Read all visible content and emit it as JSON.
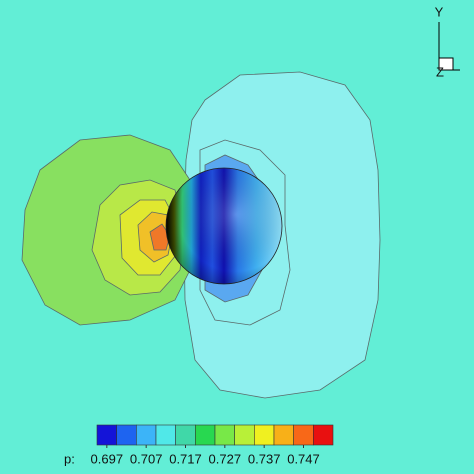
{
  "chart_data": {
    "type": "contour",
    "colorbar_label": "p:",
    "levels": [
      0.697,
      0.702,
      0.707,
      0.712,
      0.717,
      0.722,
      0.727,
      0.732,
      0.737,
      0.742,
      0.747,
      0.752
    ],
    "level_colors": [
      "#1414d8",
      "#1e64f0",
      "#3cb4f8",
      "#50e8e8",
      "#40d8a8",
      "#28d850",
      "#78e848",
      "#b8f038",
      "#f0f020",
      "#f8b018",
      "#f86818",
      "#e81010"
    ],
    "colorbar_lim": [
      0.6945,
      0.7545
    ],
    "colorbar_ticks": [
      0.697,
      0.707,
      0.717,
      0.727,
      0.737,
      0.747
    ],
    "axis_labels": [
      "Y",
      "Z"
    ]
  }
}
